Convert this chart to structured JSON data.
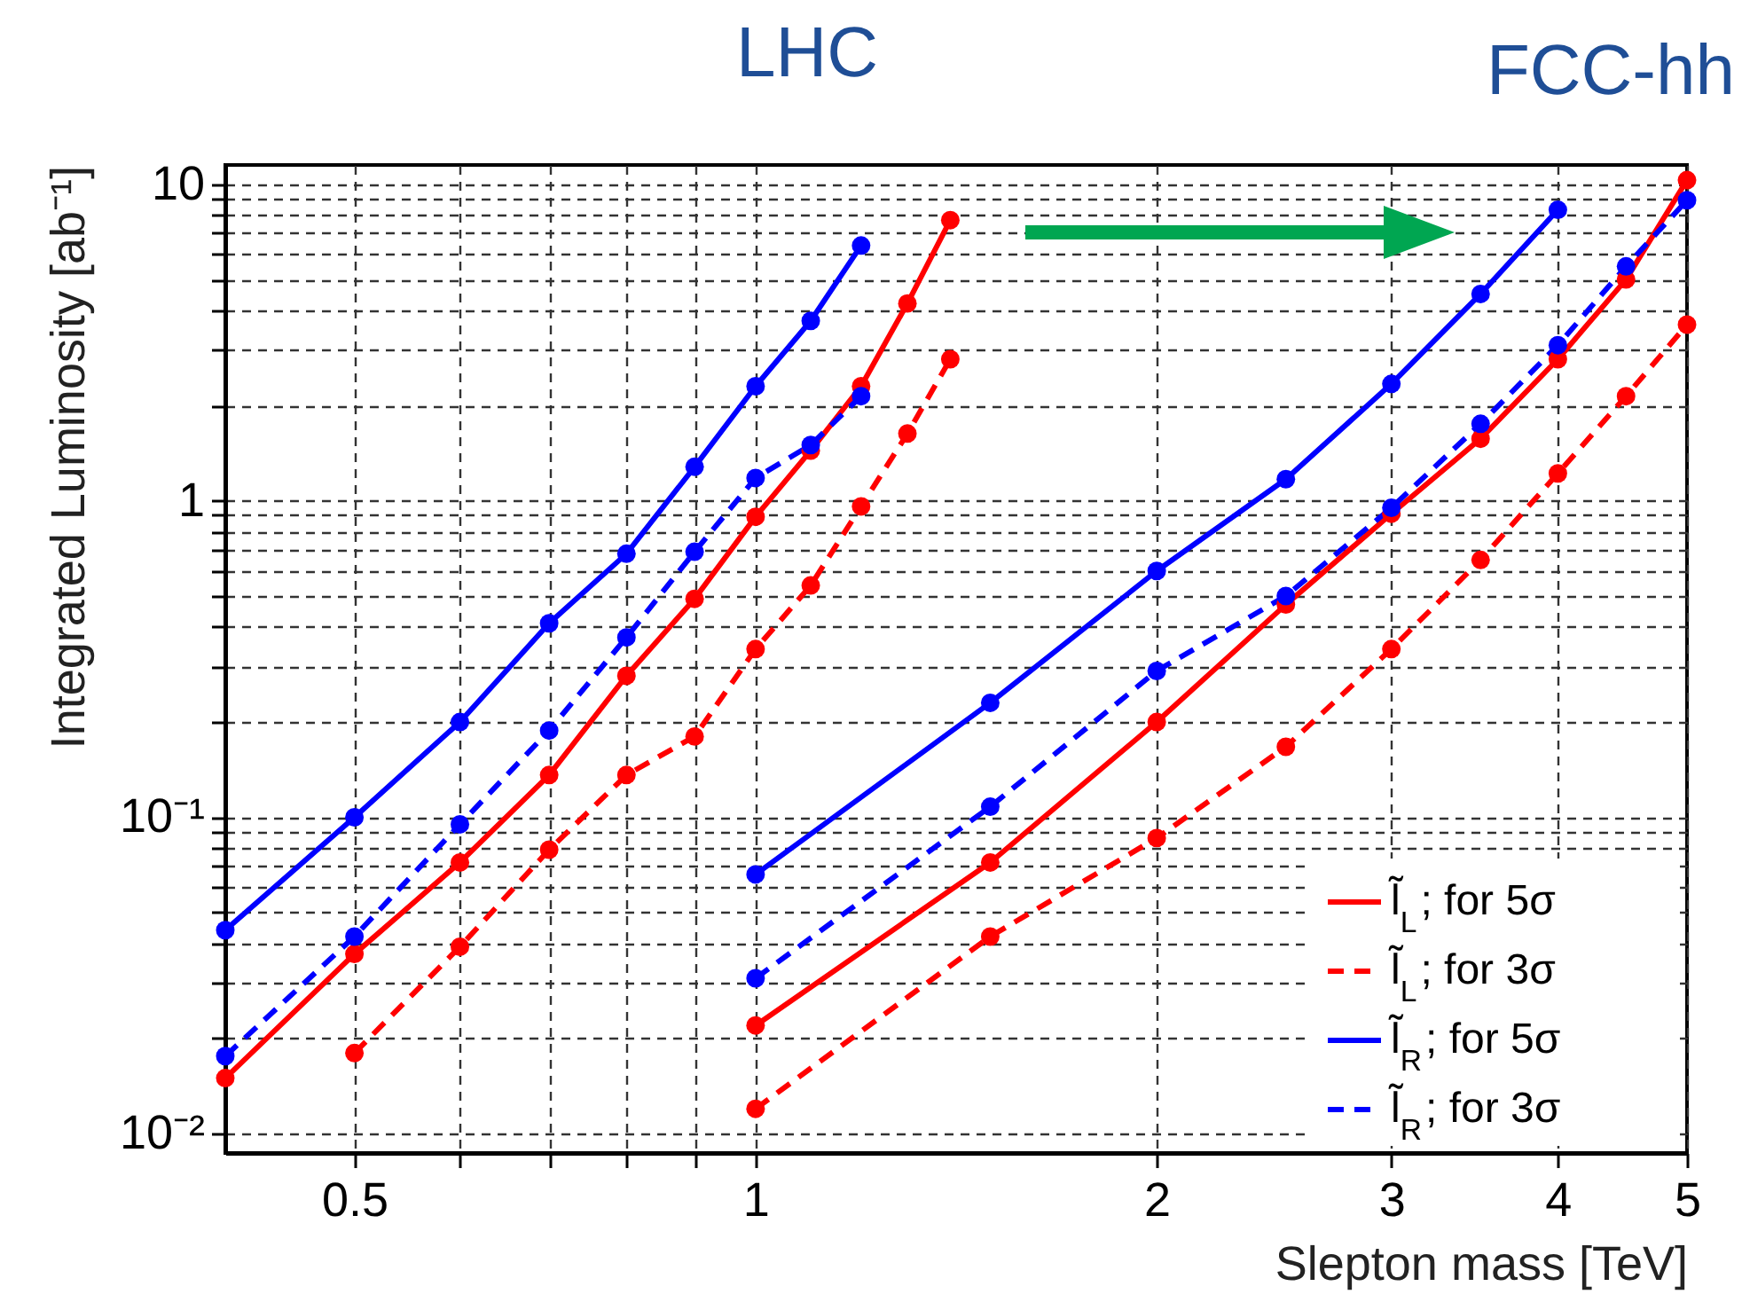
{
  "chart_data": {
    "type": "line",
    "xlabel": "Slepton mass [TeV]",
    "ylabel": "Integrated Luminosity [ab⁻¹]",
    "annotations": [
      "LHC",
      "FCC-hh"
    ],
    "log": "xy",
    "grid": true,
    "legend": "bottom right",
    "marker": "circle",
    "xlim": [
      0.4,
      5
    ],
    "xticks": [
      0.5,
      {
        "value": 0.6,
        "label": null
      },
      {
        "value": 0.7,
        "label": null
      },
      {
        "value": 0.8,
        "label": null
      },
      {
        "value": 0.9,
        "label": null
      },
      1,
      2,
      3,
      4,
      5
    ],
    "ylim": [
      0.0087,
      11.5
    ],
    "yticks": [
      {
        "value": 0.01,
        "label": "10⁻²"
      },
      {
        "value": 0.02,
        "label": null
      },
      {
        "value": 0.03,
        "label": null
      },
      {
        "value": 0.04,
        "label": null
      },
      {
        "value": 0.05,
        "label": null
      },
      {
        "value": 0.06,
        "label": null
      },
      {
        "value": 0.07,
        "label": null
      },
      {
        "value": 0.08,
        "label": null
      },
      {
        "value": 0.09,
        "label": null
      },
      {
        "value": 0.1,
        "label": "10⁻¹"
      },
      {
        "value": 0.2,
        "label": null
      },
      {
        "value": 0.3,
        "label": null
      },
      {
        "value": 0.4,
        "label": null
      },
      {
        "value": 0.5,
        "label": null
      },
      {
        "value": 0.6,
        "label": null
      },
      {
        "value": 0.7,
        "label": null
      },
      {
        "value": 0.8,
        "label": null
      },
      {
        "value": 0.9,
        "label": null
      },
      1,
      {
        "value": 2,
        "label": null
      },
      {
        "value": 3,
        "label": null
      },
      {
        "value": 4,
        "label": null
      },
      {
        "value": 5,
        "label": null
      },
      {
        "value": 6,
        "label": null
      },
      {
        "value": 7,
        "label": null
      },
      {
        "value": 8,
        "label": null
      },
      {
        "value": 9,
        "label": null
      },
      10
    ],
    "series": [
      {
        "name": "l̃$_{L}$; for 5σ",
        "color": "#ff0000",
        "line_style": "solid",
        "x": [
          0.4,
          0.5,
          0.6,
          0.7,
          0.8,
          0.9,
          1.0,
          1.1,
          1.2,
          1.3,
          1.4,
          1.0,
          1.5,
          2,
          2.5,
          3,
          3.5,
          4,
          4.5,
          5
        ],
        "values": [
          0.015,
          0.037,
          0.072,
          0.136,
          0.28,
          0.49,
          0.89,
          1.44,
          2.3,
          4.2,
          7.7,
          0.022,
          0.072,
          0.2,
          0.47,
          0.91,
          1.57,
          2.8,
          5.0,
          10.3
        ]
      },
      {
        "name": "l̃$_{L}$; for 3σ",
        "color": "#ff0000",
        "line_style": "dashed",
        "x": [
          0.5,
          0.6,
          0.7,
          0.8,
          0.9,
          1.0,
          1.1,
          1.2,
          1.3,
          1.4,
          1.0,
          1.5,
          2,
          2.5,
          3,
          3.5,
          4,
          4.5,
          5
        ],
        "values": [
          0.018,
          0.039,
          0.079,
          0.136,
          0.18,
          0.34,
          0.54,
          0.96,
          1.63,
          2.8,
          0.012,
          0.042,
          0.086,
          0.167,
          0.34,
          0.65,
          1.22,
          2.14,
          3.6
        ]
      },
      {
        "name": "l̃$_{R}$; for 5σ",
        "color": "#0000ff",
        "line_style": "solid",
        "x": [
          0.4,
          0.5,
          0.6,
          0.7,
          0.8,
          0.9,
          1.0,
          1.1,
          1.2,
          1.0,
          1.5,
          2,
          2.5,
          3,
          3.5,
          4
        ],
        "values": [
          0.044,
          0.1,
          0.2,
          0.41,
          0.68,
          1.28,
          2.3,
          3.7,
          6.4,
          0.066,
          0.23,
          0.6,
          1.17,
          2.34,
          4.5,
          8.3
        ]
      },
      {
        "name": "l̃$_{R}$; for 3σ",
        "color": "#0000ff",
        "line_style": "dashed",
        "x": [
          0.4,
          0.5,
          0.6,
          0.7,
          0.8,
          0.9,
          1.0,
          1.1,
          1.2,
          1.0,
          1.5,
          2,
          2.5,
          3,
          3.5,
          4,
          4.5,
          5
        ],
        "values": [
          0.0176,
          0.042,
          0.095,
          0.188,
          0.37,
          0.69,
          1.18,
          1.5,
          2.14,
          0.031,
          0.108,
          0.29,
          0.5,
          0.95,
          1.75,
          3.1,
          5.5,
          8.9
        ]
      }
    ]
  }
}
